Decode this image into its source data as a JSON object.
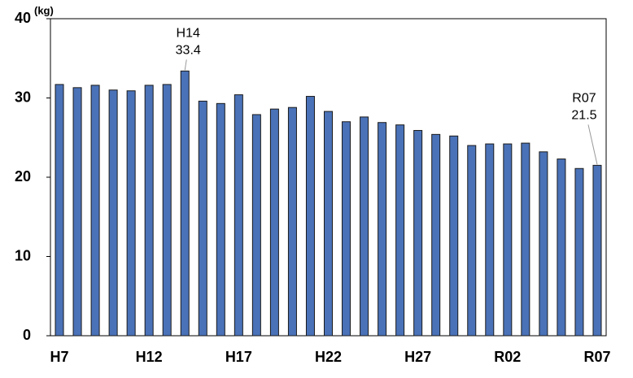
{
  "chart_data": {
    "type": "bar",
    "y_label": "(kg)",
    "categories": [
      "H7",
      null,
      null,
      null,
      null,
      "H12",
      null,
      null,
      null,
      null,
      "H17",
      null,
      null,
      null,
      null,
      "H22",
      null,
      null,
      null,
      null,
      "H27",
      null,
      null,
      null,
      null,
      "R02",
      null,
      null,
      null,
      null,
      "R07"
    ],
    "values": [
      31.7,
      31.3,
      31.6,
      31.0,
      30.9,
      31.6,
      31.7,
      33.4,
      29.6,
      29.3,
      30.4,
      27.9,
      28.6,
      28.8,
      30.2,
      28.3,
      27.0,
      27.6,
      26.9,
      26.6,
      25.9,
      25.4,
      25.2,
      24.0,
      24.2,
      24.2,
      24.3,
      23.2,
      22.3,
      21.1,
      21.5
    ],
    "value_labels": [
      null,
      null,
      null,
      null,
      null,
      null,
      null,
      "33.4",
      null,
      null,
      null,
      null,
      null,
      null,
      null,
      null,
      null,
      null,
      null,
      null,
      null,
      null,
      null,
      null,
      null,
      null,
      null,
      null,
      null,
      null,
      "21.5"
    ],
    "annotations": [
      "H14",
      "R07"
    ],
    "color": "#4a72b8",
    "ylim": [
      0,
      40
    ],
    "yticks": [
      0,
      10,
      20,
      30,
      40
    ],
    "grid": false
  }
}
